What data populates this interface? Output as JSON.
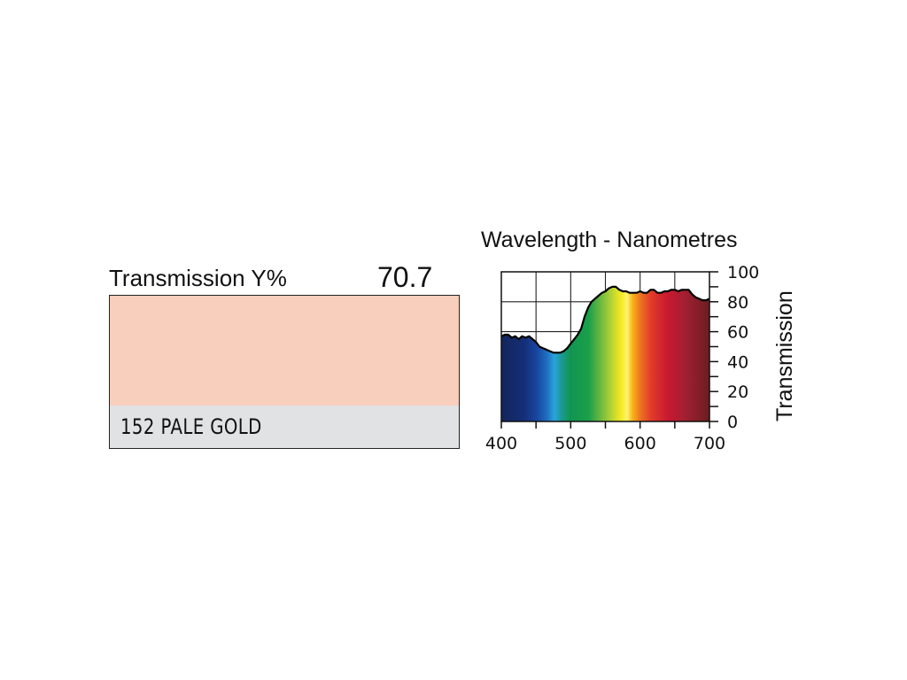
{
  "transmission": {
    "label": "Transmission Y%",
    "value": "70.7"
  },
  "filter": {
    "name": "152 PALE GOLD",
    "swatch_color": "#f8cebd",
    "name_bar_color": "#e1e2e4"
  },
  "chart_data": {
    "type": "area",
    "title": "Wavelength - Nanometres",
    "xlabel": "",
    "ylabel": "Transmission",
    "xlim": [
      400,
      700
    ],
    "ylim": [
      0,
      100
    ],
    "x_ticks": [
      "400",
      "500",
      "600",
      "700"
    ],
    "y_ticks": [
      "0",
      "20",
      "40",
      "60",
      "80",
      "100"
    ],
    "grid": true,
    "fill": "visible spectrum gradient",
    "x": [
      400,
      405,
      410,
      415,
      420,
      425,
      430,
      435,
      440,
      445,
      450,
      455,
      460,
      465,
      470,
      475,
      480,
      485,
      490,
      495,
      500,
      505,
      510,
      515,
      520,
      525,
      530,
      535,
      540,
      545,
      550,
      555,
      560,
      565,
      570,
      575,
      580,
      585,
      590,
      595,
      600,
      605,
      610,
      615,
      620,
      625,
      630,
      635,
      640,
      645,
      650,
      655,
      660,
      665,
      670,
      675,
      680,
      685,
      690,
      695,
      700
    ],
    "y": [
      57,
      58,
      58,
      56,
      57,
      55,
      57,
      56,
      57,
      55,
      53,
      50,
      49,
      48,
      47,
      46,
      46,
      46,
      47,
      49,
      52,
      55,
      58,
      62,
      70,
      76,
      80,
      82,
      84,
      86,
      87,
      89,
      90,
      90,
      88,
      87,
      87,
      86,
      86,
      86,
      87,
      86,
      86,
      88,
      88,
      86,
      86,
      87,
      87,
      88,
      88,
      87,
      88,
      88,
      88,
      85,
      83,
      82,
      81,
      81,
      82
    ]
  }
}
